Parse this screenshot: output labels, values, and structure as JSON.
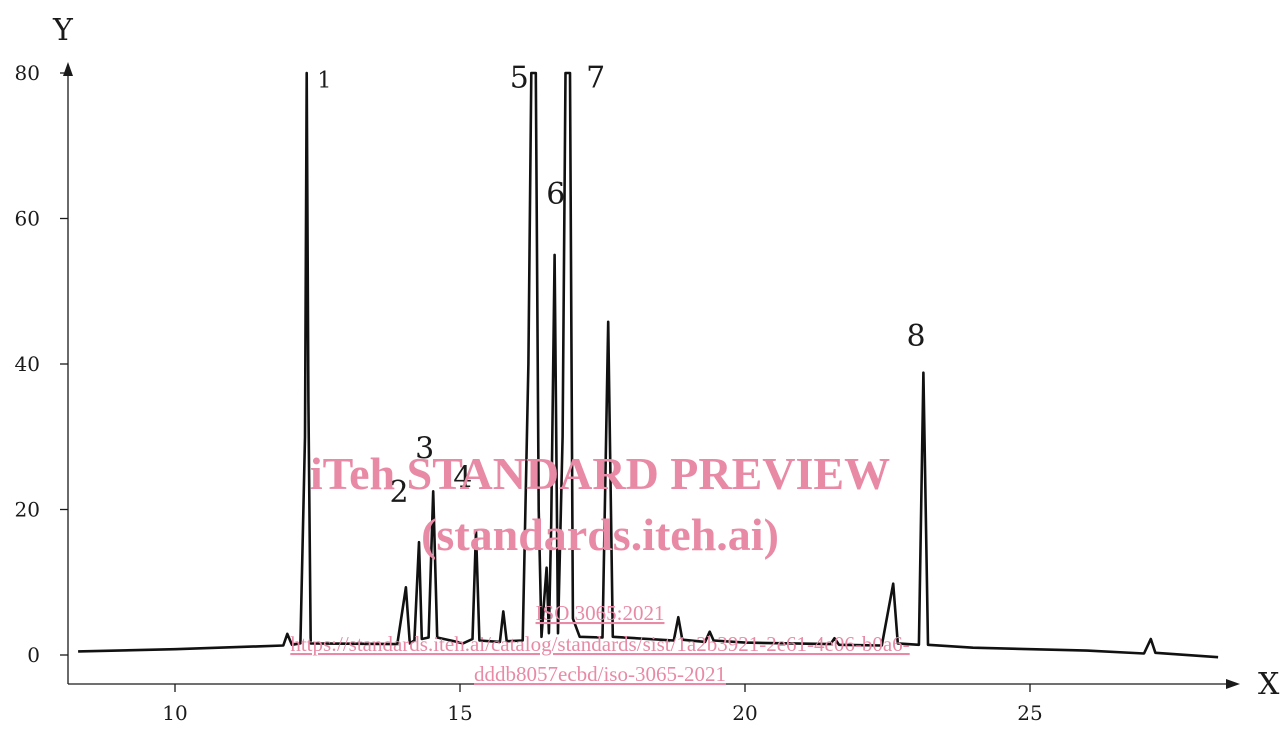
{
  "chart_data": {
    "type": "line",
    "xlabel": "X",
    "ylabel": "Y",
    "xlim": [
      8.2,
      28.5
    ],
    "ylim": [
      -4,
      80
    ],
    "x_ticks": [
      10,
      15,
      20,
      25
    ],
    "y_ticks": [
      0,
      20,
      40,
      60,
      80
    ],
    "grid": false,
    "series": [
      {
        "points": [
          [
            8.3,
            0.5
          ],
          [
            10.0,
            0.8
          ],
          [
            11.5,
            1.2
          ],
          [
            11.9,
            1.3
          ],
          [
            11.97,
            2.9
          ],
          [
            12.05,
            1.4
          ],
          [
            12.2,
            1.6
          ],
          [
            12.28,
            30
          ],
          [
            12.31,
            80
          ],
          [
            12.34,
            35
          ],
          [
            12.38,
            1.6
          ],
          [
            13.9,
            1.5
          ],
          [
            14.05,
            9.3
          ],
          [
            14.12,
            1.6
          ],
          [
            14.2,
            2.0
          ],
          [
            14.28,
            15.5
          ],
          [
            14.33,
            2.2
          ],
          [
            14.45,
            2.4
          ],
          [
            14.53,
            22.5
          ],
          [
            14.6,
            2.4
          ],
          [
            14.95,
            1.8
          ],
          [
            15.05,
            1.6
          ],
          [
            15.22,
            2.2
          ],
          [
            15.28,
            17
          ],
          [
            15.34,
            2.0
          ],
          [
            15.7,
            1.8
          ],
          [
            15.76,
            6
          ],
          [
            15.82,
            1.9
          ],
          [
            16.1,
            2.0
          ],
          [
            16.2,
            40
          ],
          [
            16.25,
            80
          ],
          [
            16.33,
            80
          ],
          [
            16.38,
            20
          ],
          [
            16.43,
            2.5
          ],
          [
            16.48,
            8
          ],
          [
            16.52,
            12
          ],
          [
            16.56,
            3
          ],
          [
            16.6,
            18
          ],
          [
            16.66,
            55
          ],
          [
            16.72,
            3
          ],
          [
            16.8,
            30
          ],
          [
            16.85,
            80
          ],
          [
            16.93,
            80
          ],
          [
            16.98,
            5
          ],
          [
            17.1,
            2.5
          ],
          [
            17.5,
            2.4
          ],
          [
            17.6,
            45.8
          ],
          [
            17.68,
            2.5
          ],
          [
            18.75,
            2.0
          ],
          [
            18.83,
            5.2
          ],
          [
            18.9,
            2.1
          ],
          [
            19.3,
            1.8
          ],
          [
            19.38,
            3.2
          ],
          [
            19.45,
            2.0
          ],
          [
            20.0,
            1.7
          ],
          [
            21.5,
            1.5
          ],
          [
            21.57,
            2.3
          ],
          [
            21.65,
            1.4
          ],
          [
            22.4,
            1.3
          ],
          [
            22.6,
            9.8
          ],
          [
            22.68,
            1.6
          ],
          [
            23.05,
            1.4
          ],
          [
            23.13,
            38.8
          ],
          [
            23.21,
            1.4
          ],
          [
            24.0,
            1.0
          ],
          [
            26.0,
            0.6
          ],
          [
            27.0,
            0.2
          ],
          [
            27.12,
            2.2
          ],
          [
            27.2,
            0.3
          ],
          [
            28.3,
            -0.3
          ]
        ]
      }
    ],
    "peak_labels": [
      {
        "text": "1",
        "x": 12.62,
        "y": 78
      },
      {
        "text": "2",
        "x": 13.93,
        "y": 21
      },
      {
        "text": "3",
        "x": 14.38,
        "y": 27
      },
      {
        "text": "4",
        "x": 15.05,
        "y": 23
      },
      {
        "text": "5",
        "x": 16.04,
        "y": 78
      },
      {
        "text": "6",
        "x": 16.68,
        "y": 62
      },
      {
        "text": "7",
        "x": 17.38,
        "y": 78
      },
      {
        "text": "8",
        "x": 23.0,
        "y": 42.5
      }
    ]
  },
  "watermark": {
    "line1": "iTeh STANDARD PREVIEW",
    "line2": "(standards.iteh.ai)",
    "line3": "ISO 3065:2021",
    "line4": "https://standards.iteh.ai/catalog/standards/sist/1a2b3921-2e61-4e06-b0a6-",
    "line5": "dddb8057ecbd/iso-3065-2021"
  }
}
